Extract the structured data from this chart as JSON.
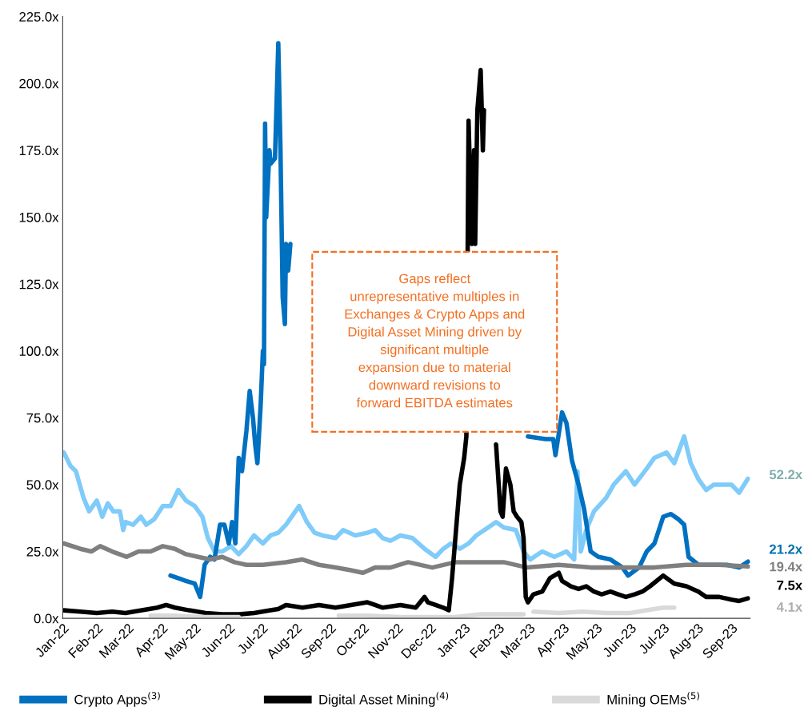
{
  "chart_data": {
    "type": "line",
    "line_style": "solid",
    "marker": "none",
    "grid": false,
    "legend": "bottom",
    "ylim": [
      0,
      225
    ],
    "yticks": [
      {
        "value": 0,
        "label": "0.0x"
      },
      {
        "value": 25,
        "label": "25.0x"
      },
      {
        "value": 50,
        "label": "50.0x"
      },
      {
        "value": 75,
        "label": "75.0x"
      },
      {
        "value": 100,
        "label": "100.0x"
      },
      {
        "value": 125,
        "label": "125.0x"
      },
      {
        "value": 150,
        "label": "150.0x"
      },
      {
        "value": 175,
        "label": "175.0x"
      },
      {
        "value": 200,
        "label": "200.0x"
      },
      {
        "value": 225,
        "label": "225.0x"
      }
    ],
    "xlim": [
      "2022-01-01",
      "2023-09-18"
    ],
    "xticks": [
      {
        "value": "2022-01-01",
        "label": "Jan-22"
      },
      {
        "value": "2022-02-01",
        "label": "Feb-22"
      },
      {
        "value": "2022-03-01",
        "label": "Mar-22"
      },
      {
        "value": "2022-04-01",
        "label": "Apr-22"
      },
      {
        "value": "2022-05-01",
        "label": "May-22"
      },
      {
        "value": "2022-06-01",
        "label": "Jun-22"
      },
      {
        "value": "2022-07-01",
        "label": "Jul-22"
      },
      {
        "value": "2022-08-01",
        "label": "Aug-22"
      },
      {
        "value": "2022-09-01",
        "label": "Sep-22"
      },
      {
        "value": "2022-10-01",
        "label": "Oct-22"
      },
      {
        "value": "2022-11-01",
        "label": "Nov-22"
      },
      {
        "value": "2022-12-01",
        "label": "Dec-22"
      },
      {
        "value": "2023-01-01",
        "label": "Jan-23"
      },
      {
        "value": "2023-02-01",
        "label": "Feb-23"
      },
      {
        "value": "2023-03-01",
        "label": "Mar-23"
      },
      {
        "value": "2023-04-01",
        "label": "Apr-23"
      },
      {
        "value": "2023-05-01",
        "label": "May-23"
      },
      {
        "value": "2023-06-01",
        "label": "Jun-23"
      },
      {
        "value": "2023-07-01",
        "label": "Jul-23"
      },
      {
        "value": "2023-08-01",
        "label": "Aug-23"
      },
      {
        "value": "2023-09-01",
        "label": "Sep-23"
      }
    ],
    "series": [
      {
        "color": "#7fcbf9",
        "x": [
          "2022-01-02",
          "2022-01-08",
          "2022-01-13",
          "2022-01-20",
          "2022-01-25",
          "2022-02-01",
          "2022-02-06",
          "2022-02-11",
          "2022-02-16",
          "2022-02-22",
          "2022-02-25",
          "2022-02-27",
          "2022-03-06",
          "2022-03-13",
          "2022-03-18",
          "2022-03-25",
          "2022-04-02",
          "2022-04-09",
          "2022-04-16",
          "2022-04-23",
          "2022-05-01",
          "2022-05-08",
          "2022-05-13",
          "2022-05-19",
          "2022-05-26",
          "2022-06-03",
          "2022-06-10",
          "2022-06-17",
          "2022-06-24",
          "2022-07-02",
          "2022-07-09",
          "2022-07-16",
          "2022-07-23",
          "2022-08-04",
          "2022-08-11",
          "2022-08-18",
          "2022-08-25",
          "2022-09-06",
          "2022-09-13",
          "2022-09-24",
          "2022-10-05",
          "2022-10-12",
          "2022-10-19",
          "2022-10-26",
          "2022-11-04",
          "2022-11-15",
          "2022-11-26",
          "2022-12-06",
          "2022-12-13",
          "2022-12-20",
          "2022-12-28",
          "2023-01-05",
          "2023-01-12",
          "2023-01-23",
          "2023-01-30",
          "2023-02-06",
          "2023-02-17",
          "2023-02-24",
          "2023-03-02",
          "2023-03-13",
          "2023-03-24",
          "2023-04-04",
          "2023-04-11",
          "2023-04-14",
          "2023-04-17",
          "2023-04-22",
          "2023-04-29",
          "2023-05-10",
          "2023-05-17",
          "2023-05-28",
          "2023-06-05",
          "2023-06-16",
          "2023-06-23",
          "2023-07-04",
          "2023-07-11",
          "2023-07-20",
          "2023-07-26",
          "2023-08-02",
          "2023-08-09",
          "2023-08-16",
          "2023-08-24",
          "2023-09-01",
          "2023-09-08",
          "2023-09-16"
        ],
        "values": [
          62,
          57,
          55,
          45,
          40,
          44,
          38,
          43,
          40,
          40,
          33,
          36,
          35,
          38,
          35,
          37,
          42,
          42,
          48,
          44,
          42,
          38,
          30,
          25,
          25,
          27,
          24,
          27,
          31,
          28,
          31,
          32,
          35,
          42,
          36,
          32,
          31,
          30,
          33,
          31,
          32,
          33,
          30,
          29,
          31,
          30,
          26,
          23,
          26,
          28,
          26,
          28,
          31,
          34,
          36,
          34,
          33,
          25,
          22,
          25,
          23,
          25,
          22,
          55,
          25,
          33,
          40,
          45,
          50,
          55,
          50,
          56,
          60,
          62,
          58,
          68,
          58,
          52,
          48,
          50,
          50,
          50,
          47,
          52.2
        ]
      },
      {
        "name": "Crypto Apps$^{(3)}$",
        "color": "#0070c0",
        "x": [
          "2022-04-09",
          "2022-04-16",
          "2022-04-23",
          "2022-05-01",
          "2022-05-04",
          "2022-05-06",
          "2022-05-10",
          "2022-05-15",
          "2022-05-19",
          "2022-05-24",
          "2022-05-28",
          "2022-06-01",
          "2022-06-04",
          "2022-06-07",
          "2022-06-10",
          "2022-06-13",
          "2022-06-17",
          "2022-06-20",
          "2022-06-23",
          "2022-06-25",
          "2022-06-27",
          "2022-06-30",
          "2022-07-02",
          "2022-07-03",
          "2022-07-04",
          "2022-07-05",
          "2022-07-08",
          "2022-07-09",
          "2022-07-13",
          "2022-07-16",
          "2022-07-18",
          "2022-07-20",
          "2022-07-22",
          "2022-07-23",
          "2022-07-25",
          "2022-07-27",
          "2022-11-01",
          "2023-02-28",
          "2023-03-16",
          "2023-03-23",
          "2023-03-25",
          "2023-03-31",
          "2023-04-04",
          "2023-04-09",
          "2023-04-15",
          "2023-04-20",
          "2023-04-26",
          "2023-05-03",
          "2023-05-14",
          "2023-05-25",
          "2023-05-30",
          "2023-06-09",
          "2023-06-16",
          "2023-06-23",
          "2023-07-01",
          "2023-07-08",
          "2023-07-15",
          "2023-07-20",
          "2023-07-24",
          "2023-08-02",
          "2023-08-13",
          "2023-08-28",
          "2023-09-08",
          "2023-09-16"
        ],
        "values": [
          16,
          15,
          14,
          13,
          10,
          8,
          20,
          23,
          22,
          35,
          35,
          28,
          36,
          28,
          60,
          55,
          70,
          85,
          75,
          65,
          58,
          80,
          100,
          95,
          185,
          150,
          175,
          170,
          172,
          215,
          175,
          120,
          110,
          140,
          130,
          140,
          null,
          68,
          67,
          67,
          61,
          77,
          73,
          59,
          50,
          41,
          25,
          23,
          22,
          19,
          16,
          19,
          25,
          28,
          38,
          39,
          37,
          35,
          23,
          20,
          20,
          20,
          19,
          21.2
        ]
      },
      {
        "color": "#7f7f7f",
        "x": [
          "2022-01-02",
          "2022-01-17",
          "2022-01-27",
          "2022-02-04",
          "2022-02-15",
          "2022-02-28",
          "2022-03-11",
          "2022-03-22",
          "2022-04-02",
          "2022-04-13",
          "2022-04-23",
          "2022-05-04",
          "2022-05-15",
          "2022-05-26",
          "2022-06-06",
          "2022-06-17",
          "2022-07-02",
          "2022-07-23",
          "2022-08-07",
          "2022-08-22",
          "2022-09-06",
          "2022-09-20",
          "2022-10-01",
          "2022-10-12",
          "2022-10-26",
          "2022-11-11",
          "2022-12-03",
          "2022-12-24",
          "2023-01-16",
          "2023-02-06",
          "2023-02-27",
          "2023-03-28",
          "2023-04-26",
          "2023-05-25",
          "2023-06-23",
          "2023-07-22",
          "2023-08-21",
          "2023-09-16"
        ],
        "values": [
          28,
          26,
          25,
          27,
          25,
          23,
          25,
          25,
          27,
          26,
          24,
          23,
          22,
          23,
          21,
          20,
          20,
          21,
          22,
          20,
          19,
          18,
          17,
          19,
          19,
          21,
          19,
          21,
          21,
          21,
          19,
          20,
          19,
          19,
          19,
          20,
          20,
          19.4
        ]
      },
      {
        "name": "Digital Asset Mining$^{(4)}$",
        "color": "#000000",
        "x": [
          "2022-01-02",
          "2022-01-17",
          "2022-02-01",
          "2022-02-15",
          "2022-02-27",
          "2022-03-14",
          "2022-03-28",
          "2022-04-05",
          "2022-04-13",
          "2022-04-26",
          "2022-05-11",
          "2022-05-26",
          "2022-06-10",
          "2022-06-24",
          "2022-07-09",
          "2022-07-16",
          "2022-07-23",
          "2022-08-07",
          "2022-08-22",
          "2022-09-06",
          "2022-09-20",
          "2022-10-05",
          "2022-10-12",
          "2022-10-19",
          "2022-11-04",
          "2022-11-18",
          "2022-11-26",
          "2022-11-29",
          "2022-12-06",
          "2022-12-13",
          "2022-12-18",
          "2022-12-21",
          "2022-12-25",
          "2022-12-28",
          "2023-01-01",
          "2023-01-03",
          "2023-01-05",
          "2023-01-08",
          "2023-01-10",
          "2023-01-11",
          "2023-01-13",
          "2023-01-16",
          "2023-01-18",
          "2023-01-19",
          "2023-01-25",
          "2023-01-30",
          "2023-02-03",
          "2023-02-05",
          "2023-02-08",
          "2023-02-12",
          "2023-02-15",
          "2023-02-18",
          "2023-02-22",
          "2023-02-24",
          "2023-02-26",
          "2023-02-28",
          "2023-03-05",
          "2023-03-13",
          "2023-03-20",
          "2023-03-28",
          "2023-03-31",
          "2023-04-08",
          "2023-04-15",
          "2023-04-22",
          "2023-04-29",
          "2023-05-06",
          "2023-05-14",
          "2023-05-21",
          "2023-05-28",
          "2023-06-05",
          "2023-06-12",
          "2023-06-19",
          "2023-07-01",
          "2023-07-11",
          "2023-07-22",
          "2023-08-02",
          "2023-08-09",
          "2023-08-21",
          "2023-09-01",
          "2023-09-08",
          "2023-09-16"
        ],
        "values": [
          3,
          2.5,
          2,
          2.5,
          2,
          3,
          4,
          5,
          4,
          3,
          2,
          1.5,
          1.5,
          2,
          3,
          3.5,
          5,
          4,
          5,
          4,
          5,
          6,
          5,
          4,
          5,
          4,
          8,
          6,
          5,
          4,
          3,
          15,
          35,
          50,
          60,
          68,
          186,
          140,
          175,
          140,
          190,
          205,
          175,
          190,
          null,
          65,
          40,
          38,
          56,
          50,
          40,
          38,
          36,
          30,
          8,
          6,
          9,
          10,
          15,
          17,
          14,
          12,
          11,
          12,
          10,
          9,
          10,
          9,
          8,
          9,
          10,
          12,
          16,
          13,
          12,
          10,
          8,
          8,
          7,
          6.5,
          7.5
        ]
      },
      {
        "name": "Mining OEMs$^{(5)}$",
        "color": "#d9d9d9",
        "x": [
          "2022-03-22",
          "2022-04-13",
          "2022-05-04",
          "2022-05-26",
          "2022-06-10",
          "2022-08-01",
          "2022-09-09",
          "2022-10-05",
          "2022-11-04",
          "2022-12-03",
          "2022-12-24",
          "2023-01-16",
          "2023-02-06",
          "2023-02-24",
          "2023-03-01",
          "2023-03-05",
          "2023-03-28",
          "2023-04-19",
          "2023-05-10",
          "2023-06-01",
          "2023-06-16",
          "2023-07-01",
          "2023-07-11"
        ],
        "values": [
          1,
          1,
          0.5,
          0.5,
          0.5,
          null,
          1,
          1,
          0.5,
          0.5,
          0.5,
          1.5,
          1.5,
          1.5,
          null,
          2.5,
          2,
          2.5,
          2,
          2,
          3,
          4,
          4
        ]
      }
    ],
    "annotations": [
      "52.2x",
      "21.2x",
      "19.4x",
      "7.5x",
      "4.1x",
      "Gaps reflect\nunrepresentative multiples in\nExchanges & Crypto Apps and\nDigital Asset Mining driven by\nsignificant multiple\nexpansion due to material\ndownward revisions to\nforward EBITDA estimates"
    ]
  }
}
